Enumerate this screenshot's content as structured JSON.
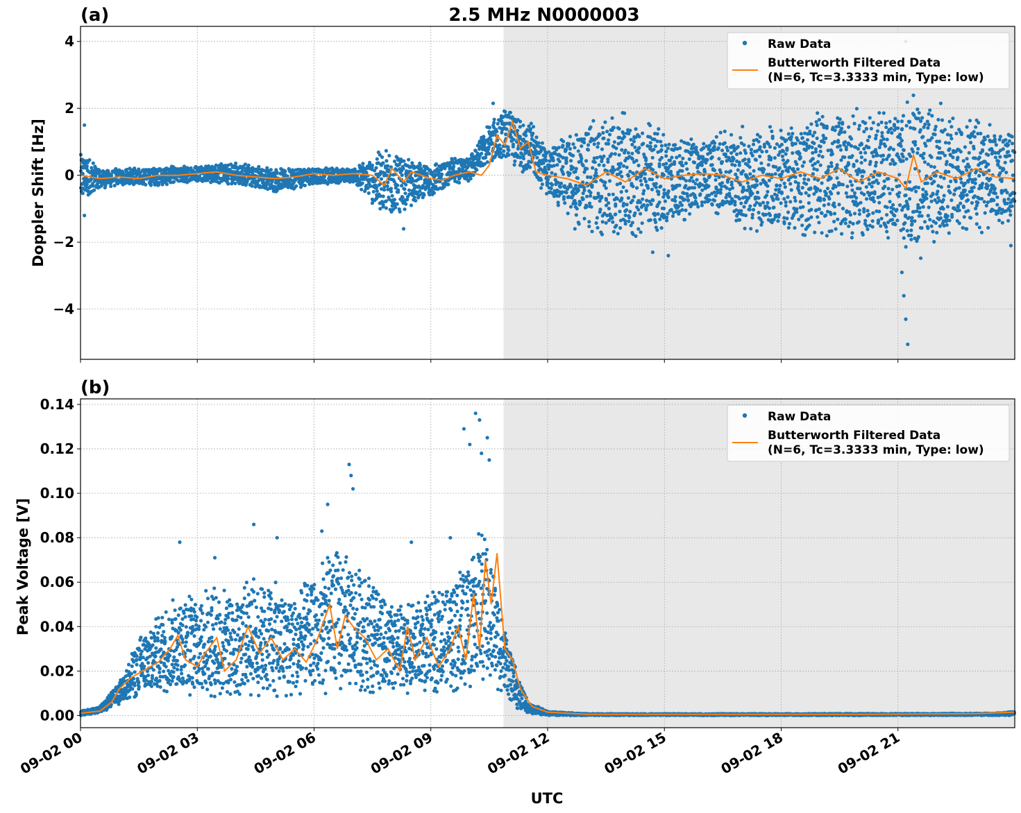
{
  "figure": {
    "title": "2.5 MHz N0000003",
    "xlabel": "UTC",
    "background": "#ffffff",
    "shade_color": "#e8e8e8",
    "raw_color": "#1f77b4",
    "filtered_color": "#ff7f0e",
    "grid": true,
    "shaded_region": [
      "09-02 10:52",
      "09-03 00:00"
    ],
    "x_ticks": [
      "09-02 00",
      "09-02 03",
      "09-02 06",
      "09-02 09",
      "09-02 12",
      "09-02 15",
      "09-02 18",
      "09-02 21"
    ],
    "legend": {
      "raw": "Raw Data",
      "filtered_line1": "Butterworth Filtered Data",
      "filtered_line2": "(N=6, Tc=3.3333 min, Type: low)",
      "placement": "top-right"
    }
  },
  "chart_data": [
    {
      "type": "scatter",
      "panel_label": "(a)",
      "ylabel": "Doppler Shift [Hz]",
      "xlim_hours": [
        0,
        24
      ],
      "ylim": [
        -5.5,
        4.45
      ],
      "y_ticks": [
        "4",
        "2",
        "0",
        "−2",
        "−4"
      ],
      "y_tick_values": [
        4,
        2,
        0,
        -2,
        -4
      ],
      "series": [
        {
          "name": "Raw Data",
          "kind": "scatter",
          "envelope_hours": [
            0,
            0.5,
            1,
            2,
            3,
            4,
            5,
            6,
            7,
            7.5,
            8,
            8.5,
            9,
            9.5,
            10,
            10.5,
            10.9,
            11.5,
            12,
            13,
            14,
            15,
            16,
            17,
            18,
            19,
            20,
            21,
            21.5,
            22,
            23,
            24
          ],
          "upper": [
            0.8,
            0.2,
            0.2,
            0.25,
            0.3,
            0.4,
            0.2,
            0.25,
            0.2,
            0.6,
            0.9,
            0.4,
            0.3,
            0.5,
            0.6,
            1.6,
            2.0,
            1.7,
            0.8,
            1.6,
            1.9,
            1.4,
            1.1,
            1.5,
            1.5,
            1.9,
            2.0,
            2.0,
            2.5,
            1.8,
            1.7,
            1.3
          ],
          "lower": [
            -0.9,
            -0.4,
            -0.3,
            -0.3,
            -0.2,
            -0.3,
            -0.5,
            -0.3,
            -0.2,
            -0.9,
            -1.3,
            -0.9,
            -0.6,
            -0.4,
            -0.2,
            0.3,
            0.4,
            0.0,
            -0.6,
            -1.8,
            -2.0,
            -1.7,
            -1.0,
            -1.6,
            -1.8,
            -1.8,
            -1.9,
            -2.0,
            -2.6,
            -1.9,
            -1.8,
            -1.3
          ],
          "outliers": [
            [
              0.1,
              1.5
            ],
            [
              0.1,
              -1.2
            ],
            [
              7.7,
              -1.0
            ],
            [
              8.3,
              -1.6
            ],
            [
              10.6,
              2.15
            ],
            [
              12.7,
              -1.6
            ],
            [
              14.7,
              -2.3
            ],
            [
              15.1,
              -2.4
            ],
            [
              21.1,
              -2.9
            ],
            [
              21.15,
              -3.6
            ],
            [
              21.2,
              -4.3
            ],
            [
              21.25,
              -5.05
            ],
            [
              21.2,
              4.0
            ],
            [
              21.25,
              3.0
            ],
            [
              22.1,
              2.15
            ],
            [
              23.9,
              -2.1
            ]
          ]
        },
        {
          "name": "Butterworth Filtered Data\n(N=6, Tc=3.3333 min, Type: low)",
          "kind": "line",
          "x_hours": [
            0,
            0.5,
            1,
            1.5,
            2,
            2.5,
            3,
            3.5,
            4,
            4.5,
            5,
            5.5,
            6,
            6.5,
            7,
            7.5,
            7.8,
            8.0,
            8.3,
            8.5,
            9.0,
            9.3,
            9.6,
            10.0,
            10.3,
            10.5,
            10.7,
            10.9,
            11.1,
            11.3,
            11.5,
            11.7,
            12.0,
            12.5,
            13,
            13.5,
            14,
            14.5,
            15,
            15.5,
            16,
            16.5,
            17,
            17.5,
            18,
            18.5,
            19,
            19.5,
            20,
            20.5,
            21,
            21.2,
            21.4,
            21.6,
            22,
            22.5,
            23,
            23.5,
            24
          ],
          "y": [
            0.0,
            -0.1,
            -0.05,
            -0.1,
            0.0,
            0.0,
            0.05,
            0.1,
            0.0,
            -0.05,
            -0.1,
            -0.05,
            0.05,
            0.0,
            0.05,
            0.0,
            -0.3,
            0.2,
            -0.2,
            0.1,
            -0.1,
            -0.15,
            0.0,
            0.1,
            0.0,
            0.3,
            1.2,
            0.9,
            1.6,
            0.8,
            1.0,
            0.1,
            0.0,
            -0.1,
            -0.3,
            0.1,
            -0.2,
            0.2,
            -0.1,
            0.0,
            0.05,
            0.0,
            -0.2,
            0.0,
            -0.1,
            0.1,
            -0.1,
            0.2,
            -0.2,
            0.1,
            -0.1,
            -0.4,
            0.6,
            -0.2,
            0.1,
            -0.1,
            0.2,
            -0.05,
            -0.1
          ]
        }
      ]
    },
    {
      "type": "scatter",
      "panel_label": "(b)",
      "ylabel": "Peak Voltage [V]",
      "xlim_hours": [
        0,
        24
      ],
      "ylim": [
        -0.0055,
        0.1425
      ],
      "y_ticks": [
        "0.00",
        "0.02",
        "0.04",
        "0.06",
        "0.08",
        "0.10",
        "0.12",
        "0.14"
      ],
      "y_tick_values": [
        0,
        0.02,
        0.04,
        0.06,
        0.08,
        0.1,
        0.12,
        0.14
      ],
      "series": [
        {
          "name": "Raw Data",
          "kind": "scatter",
          "envelope_hours": [
            0,
            0.5,
            1,
            1.5,
            2,
            2.5,
            3,
            3.5,
            4,
            4.5,
            5,
            5.5,
            6,
            6.5,
            7,
            7.5,
            8,
            8.5,
            9,
            9.5,
            10,
            10.3,
            10.6,
            10.9,
            11.2,
            11.5,
            12,
            13,
            18,
            23.5,
            24
          ],
          "upper": [
            0.002,
            0.004,
            0.015,
            0.035,
            0.045,
            0.055,
            0.055,
            0.06,
            0.055,
            0.065,
            0.06,
            0.055,
            0.065,
            0.075,
            0.07,
            0.065,
            0.05,
            0.05,
            0.055,
            0.06,
            0.075,
            0.085,
            0.07,
            0.04,
            0.02,
            0.006,
            0.002,
            0.0008,
            0.0008,
            0.001,
            0.002
          ],
          "lower": [
            0.0,
            0.001,
            0.005,
            0.008,
            0.01,
            0.01,
            0.008,
            0.008,
            0.008,
            0.008,
            0.008,
            0.008,
            0.007,
            0.01,
            0.012,
            0.01,
            0.008,
            0.01,
            0.01,
            0.01,
            0.012,
            0.015,
            0.012,
            0.01,
            0.003,
            0.001,
            0.0,
            0.0,
            0.0,
            0.0,
            0.0
          ],
          "outliers": [
            [
              2.55,
              0.078
            ],
            [
              3.45,
              0.071
            ],
            [
              4.45,
              0.086
            ],
            [
              5.05,
              0.08
            ],
            [
              6.2,
              0.083
            ],
            [
              6.35,
              0.095
            ],
            [
              6.9,
              0.113
            ],
            [
              6.95,
              0.108
            ],
            [
              7.0,
              0.102
            ],
            [
              8.5,
              0.078
            ],
            [
              9.5,
              0.08
            ],
            [
              9.85,
              0.129
            ],
            [
              10.0,
              0.122
            ],
            [
              10.15,
              0.136
            ],
            [
              10.25,
              0.133
            ],
            [
              10.45,
              0.125
            ],
            [
              10.5,
              0.115
            ],
            [
              10.3,
              0.118
            ]
          ]
        },
        {
          "name": "Butterworth Filtered Data\n(N=6, Tc=3.3333 min, Type: low)",
          "kind": "line",
          "x_hours": [
            0,
            0.5,
            0.8,
            1.0,
            1.3,
            1.6,
            2.0,
            2.3,
            2.5,
            2.7,
            3.0,
            3.2,
            3.5,
            3.7,
            4.0,
            4.3,
            4.6,
            4.9,
            5.2,
            5.5,
            5.8,
            6.1,
            6.4,
            6.6,
            6.8,
            7.0,
            7.3,
            7.6,
            7.9,
            8.2,
            8.4,
            8.6,
            8.9,
            9.2,
            9.5,
            9.7,
            9.9,
            10.1,
            10.25,
            10.4,
            10.55,
            10.7,
            10.9,
            11.1,
            11.3,
            11.6,
            12.0,
            13.0,
            16.0,
            20.0,
            23.0,
            24.0
          ],
          "y": [
            0.001,
            0.002,
            0.006,
            0.012,
            0.017,
            0.02,
            0.024,
            0.03,
            0.036,
            0.025,
            0.022,
            0.028,
            0.035,
            0.02,
            0.025,
            0.04,
            0.028,
            0.035,
            0.025,
            0.03,
            0.024,
            0.035,
            0.05,
            0.03,
            0.045,
            0.04,
            0.035,
            0.025,
            0.03,
            0.02,
            0.04,
            0.025,
            0.035,
            0.022,
            0.03,
            0.04,
            0.025,
            0.055,
            0.03,
            0.07,
            0.05,
            0.073,
            0.03,
            0.025,
            0.012,
            0.004,
            0.0015,
            0.0005,
            0.0005,
            0.0005,
            0.0008,
            0.0015
          ]
        }
      ]
    }
  ]
}
